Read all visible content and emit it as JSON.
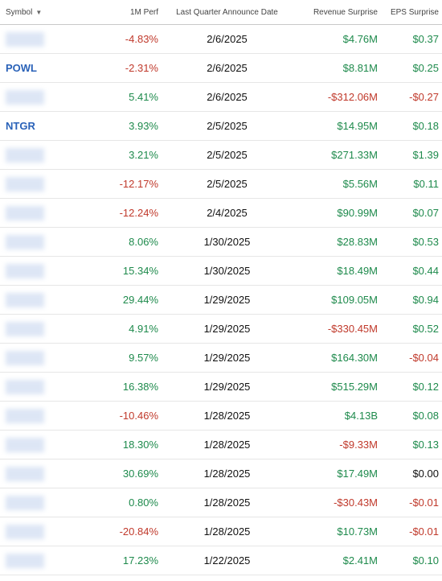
{
  "table": {
    "header": [
      "Symbol",
      "1M Perf",
      "Last Quarter Announce Date",
      "Revenue Surprise",
      "EPS Surprise"
    ],
    "rows": [
      [
        null,
        "-4.83%",
        "2/6/2025",
        "$4.76M",
        "$0.37"
      ],
      [
        "POWL",
        "-2.31%",
        "2/6/2025",
        "$8.81M",
        "$0.25"
      ],
      [
        null,
        "5.41%",
        "2/6/2025",
        "-$312.06M",
        "-$0.27"
      ],
      [
        "NTGR",
        "3.93%",
        "2/5/2025",
        "$14.95M",
        "$0.18"
      ],
      [
        null,
        "3.21%",
        "2/5/2025",
        "$271.33M",
        "$1.39"
      ],
      [
        null,
        "-12.17%",
        "2/5/2025",
        "$5.56M",
        "$0.11"
      ],
      [
        null,
        "-12.24%",
        "2/4/2025",
        "$90.99M",
        "$0.07"
      ],
      [
        null,
        "8.06%",
        "1/30/2025",
        "$28.83M",
        "$0.53"
      ],
      [
        null,
        "15.34%",
        "1/30/2025",
        "$18.49M",
        "$0.44"
      ],
      [
        null,
        "29.44%",
        "1/29/2025",
        "$109.05M",
        "$0.94"
      ],
      [
        null,
        "4.91%",
        "1/29/2025",
        "-$330.45M",
        "$0.52"
      ],
      [
        null,
        "9.57%",
        "1/29/2025",
        "$164.30M",
        "-$0.04"
      ],
      [
        null,
        "16.38%",
        "1/29/2025",
        "$515.29M",
        "$0.12"
      ],
      [
        null,
        "-10.46%",
        "1/28/2025",
        "$4.13B",
        "$0.08"
      ],
      [
        null,
        "18.30%",
        "1/28/2025",
        "-$9.33M",
        "$0.13"
      ],
      [
        null,
        "30.69%",
        "1/28/2025",
        "$17.49M",
        "$0.00"
      ],
      [
        null,
        "0.80%",
        "1/28/2025",
        "-$30.43M",
        "-$0.01"
      ],
      [
        null,
        "-20.84%",
        "1/28/2025",
        "$10.73M",
        "-$0.01"
      ],
      [
        null,
        "17.23%",
        "1/22/2025",
        "$2.41M",
        "$0.10"
      ]
    ]
  }
}
